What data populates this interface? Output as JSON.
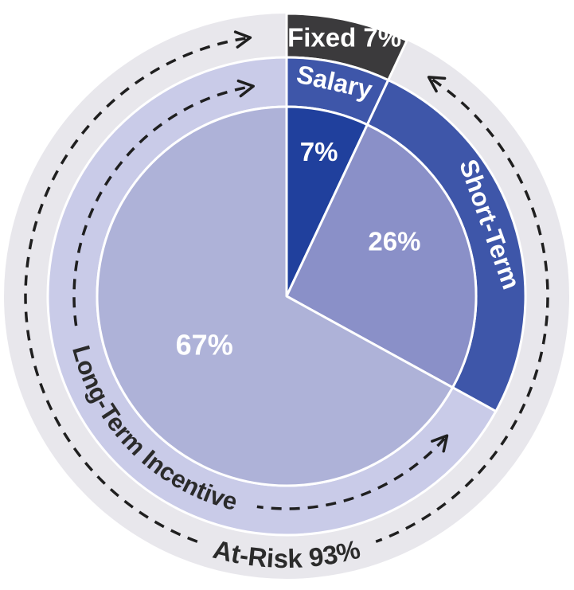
{
  "chart_data": {
    "type": "pie",
    "title": "",
    "units": "percent",
    "segments": [
      {
        "label": "Salary",
        "value": 7,
        "value_label": "7%",
        "slice_color": "#20409d",
        "ring_color": "#3e56a9",
        "ring_label": "Salary",
        "value_label_color": "#ffffff",
        "ring_label_color": "#ffffff"
      },
      {
        "label": "Short-Term",
        "value": 26,
        "value_label": "26%",
        "slice_color": "#8a90c8",
        "ring_color": "#3e56a9",
        "ring_label": "Short-Term",
        "value_label_color": "#ffffff",
        "ring_label_color": "#ffffff"
      },
      {
        "label": "Long-Term Incentive",
        "value": 67,
        "value_label": "67%",
        "slice_color": "#aeb2d8",
        "ring_color": "#c9cbe8",
        "ring_label": "Long-Term Incentive",
        "value_label_color": "#ffffff",
        "ring_label_color": "#2b2b2b"
      }
    ],
    "outer_groups": [
      {
        "label": "Fixed 7%",
        "value": 7,
        "color": "#3b3a3c",
        "label_color": "#ffffff"
      },
      {
        "label": "At-Risk 93%",
        "value": 93,
        "color": "#e8e7ec",
        "label_color": "#2b2b2b"
      }
    ],
    "annotations": {
      "style": "dashed-arrows",
      "dash_color": "#1f1f1f",
      "separator_color": "#ffffff"
    },
    "legend_position": "none"
  }
}
